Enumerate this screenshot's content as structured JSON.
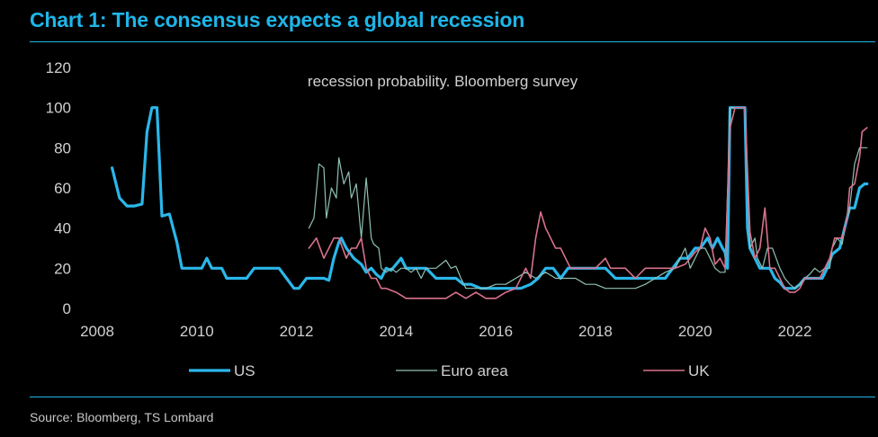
{
  "header": {
    "title": "Chart 1: The consensus expects a global recession"
  },
  "footer": {
    "source": "Source: Bloomberg, TS Lombard"
  },
  "colors": {
    "accent": "#1fb5e8",
    "us": "#2ab7ea",
    "euro": "#8fc1b5",
    "uk": "#d9728c"
  },
  "chart_data": {
    "type": "line",
    "title": "recession probability. Bloomberg survey",
    "xlabel": "",
    "ylabel": "",
    "xlim": [
      2008,
      2023.2
    ],
    "ylim": [
      0,
      120
    ],
    "x_ticks": [
      2008,
      2010,
      2012,
      2014,
      2016,
      2018,
      2020,
      2022
    ],
    "y_ticks": [
      0,
      20,
      40,
      60,
      80,
      100,
      120
    ],
    "grid": false,
    "legend_position": "bottom",
    "series": [
      {
        "name": "US",
        "color": "#2ab7ea",
        "width": 3.2,
        "points": [
          [
            2008.3,
            70
          ],
          [
            2008.45,
            55
          ],
          [
            2008.6,
            51
          ],
          [
            2008.75,
            51
          ],
          [
            2008.9,
            52
          ],
          [
            2009.0,
            88
          ],
          [
            2009.1,
            100
          ],
          [
            2009.2,
            100
          ],
          [
            2009.3,
            46
          ],
          [
            2009.45,
            47
          ],
          [
            2009.6,
            33
          ],
          [
            2009.7,
            20
          ],
          [
            2009.9,
            20
          ],
          [
            2010.1,
            20
          ],
          [
            2010.2,
            25
          ],
          [
            2010.3,
            20
          ],
          [
            2010.5,
            20
          ],
          [
            2010.6,
            15
          ],
          [
            2010.8,
            15
          ],
          [
            2011.0,
            15
          ],
          [
            2011.15,
            20
          ],
          [
            2011.3,
            20
          ],
          [
            2011.5,
            20
          ],
          [
            2011.65,
            20
          ],
          [
            2011.8,
            15
          ],
          [
            2011.95,
            10
          ],
          [
            2012.05,
            10
          ],
          [
            2012.2,
            15
          ],
          [
            2012.4,
            15
          ],
          [
            2012.55,
            15
          ],
          [
            2012.65,
            14
          ],
          [
            2012.75,
            25
          ],
          [
            2012.85,
            33
          ],
          [
            2012.9,
            35
          ],
          [
            2013.0,
            30
          ],
          [
            2013.15,
            25
          ],
          [
            2013.3,
            22
          ],
          [
            2013.4,
            18
          ],
          [
            2013.5,
            20
          ],
          [
            2013.6,
            17
          ],
          [
            2013.7,
            15
          ],
          [
            2013.8,
            20
          ],
          [
            2013.9,
            19
          ],
          [
            2014.0,
            22
          ],
          [
            2014.1,
            25
          ],
          [
            2014.2,
            20
          ],
          [
            2014.4,
            20
          ],
          [
            2014.6,
            20
          ],
          [
            2014.8,
            15
          ],
          [
            2015.0,
            15
          ],
          [
            2015.2,
            15
          ],
          [
            2015.35,
            12
          ],
          [
            2015.5,
            12
          ],
          [
            2015.7,
            10
          ],
          [
            2015.9,
            10
          ],
          [
            2016.1,
            10
          ],
          [
            2016.3,
            10
          ],
          [
            2016.5,
            10
          ],
          [
            2016.7,
            12
          ],
          [
            2016.85,
            15
          ],
          [
            2017.0,
            20
          ],
          [
            2017.15,
            20
          ],
          [
            2017.3,
            15
          ],
          [
            2017.45,
            20
          ],
          [
            2017.6,
            20
          ],
          [
            2017.8,
            20
          ],
          [
            2018.0,
            20
          ],
          [
            2018.2,
            20
          ],
          [
            2018.4,
            15
          ],
          [
            2018.6,
            15
          ],
          [
            2018.8,
            15
          ],
          [
            2019.0,
            15
          ],
          [
            2019.2,
            15
          ],
          [
            2019.4,
            15
          ],
          [
            2019.55,
            20
          ],
          [
            2019.7,
            25
          ],
          [
            2019.85,
            25
          ],
          [
            2020.0,
            30
          ],
          [
            2020.1,
            30
          ],
          [
            2020.25,
            35
          ],
          [
            2020.35,
            30
          ],
          [
            2020.45,
            35
          ],
          [
            2020.55,
            30
          ],
          [
            2020.6,
            28
          ],
          [
            2020.65,
            20
          ],
          [
            2020.7,
            100
          ],
          [
            2020.8,
            100
          ],
          [
            2020.9,
            100
          ],
          [
            2021.0,
            100
          ],
          [
            2021.05,
            40
          ],
          [
            2021.1,
            30
          ],
          [
            2021.2,
            25
          ],
          [
            2021.3,
            20
          ],
          [
            2021.4,
            20
          ],
          [
            2021.5,
            20
          ],
          [
            2021.6,
            15
          ],
          [
            2021.7,
            13
          ],
          [
            2021.8,
            10
          ],
          [
            2021.9,
            10
          ],
          [
            2022.0,
            10
          ],
          [
            2022.1,
            12
          ],
          [
            2022.2,
            15
          ],
          [
            2022.3,
            15
          ],
          [
            2022.45,
            15
          ],
          [
            2022.55,
            15
          ],
          [
            2022.65,
            20
          ],
          [
            2022.75,
            27
          ],
          [
            2022.9,
            30
          ],
          [
            2023.0,
            40
          ],
          [
            2023.1,
            50
          ],
          [
            2023.2,
            50
          ],
          [
            2023.3,
            60
          ],
          [
            2023.4,
            62
          ],
          [
            2023.45,
            62
          ]
        ]
      },
      {
        "name": "Euro area",
        "color": "#8fc1b5",
        "width": 1.2,
        "points": [
          [
            2012.25,
            40
          ],
          [
            2012.35,
            45
          ],
          [
            2012.45,
            72
          ],
          [
            2012.55,
            70
          ],
          [
            2012.6,
            45
          ],
          [
            2012.7,
            60
          ],
          [
            2012.8,
            55
          ],
          [
            2012.85,
            75
          ],
          [
            2012.95,
            62
          ],
          [
            2013.05,
            68
          ],
          [
            2013.1,
            55
          ],
          [
            2013.2,
            62
          ],
          [
            2013.3,
            35
          ],
          [
            2013.4,
            65
          ],
          [
            2013.5,
            35
          ],
          [
            2013.55,
            32
          ],
          [
            2013.65,
            30
          ],
          [
            2013.7,
            20
          ],
          [
            2013.8,
            18
          ],
          [
            2013.9,
            20
          ],
          [
            2014.0,
            18
          ],
          [
            2014.1,
            20
          ],
          [
            2014.2,
            20
          ],
          [
            2014.3,
            18
          ],
          [
            2014.4,
            20
          ],
          [
            2014.5,
            15
          ],
          [
            2014.6,
            20
          ],
          [
            2014.8,
            20
          ],
          [
            2014.9,
            22
          ],
          [
            2015.0,
            24
          ],
          [
            2015.1,
            20
          ],
          [
            2015.2,
            21
          ],
          [
            2015.3,
            15
          ],
          [
            2015.4,
            10
          ],
          [
            2015.6,
            10
          ],
          [
            2015.8,
            10
          ],
          [
            2016.0,
            12
          ],
          [
            2016.2,
            12
          ],
          [
            2016.4,
            15
          ],
          [
            2016.6,
            18
          ],
          [
            2016.8,
            15
          ],
          [
            2017.0,
            18
          ],
          [
            2017.2,
            15
          ],
          [
            2017.4,
            15
          ],
          [
            2017.6,
            15
          ],
          [
            2017.8,
            12
          ],
          [
            2018.0,
            12
          ],
          [
            2018.2,
            10
          ],
          [
            2018.4,
            10
          ],
          [
            2018.6,
            10
          ],
          [
            2018.8,
            10
          ],
          [
            2019.0,
            12
          ],
          [
            2019.2,
            15
          ],
          [
            2019.4,
            18
          ],
          [
            2019.6,
            20
          ],
          [
            2019.7,
            25
          ],
          [
            2019.8,
            30
          ],
          [
            2019.9,
            20
          ],
          [
            2020.0,
            25
          ],
          [
            2020.1,
            30
          ],
          [
            2020.2,
            30
          ],
          [
            2020.3,
            25
          ],
          [
            2020.4,
            20
          ],
          [
            2020.5,
            18
          ],
          [
            2020.6,
            18
          ],
          [
            2020.7,
            100
          ],
          [
            2020.8,
            100
          ],
          [
            2020.9,
            100
          ],
          [
            2021.0,
            100
          ],
          [
            2021.1,
            30
          ],
          [
            2021.2,
            35
          ],
          [
            2021.25,
            25
          ],
          [
            2021.35,
            20
          ],
          [
            2021.45,
            30
          ],
          [
            2021.55,
            30
          ],
          [
            2021.7,
            20
          ],
          [
            2021.8,
            15
          ],
          [
            2021.9,
            12
          ],
          [
            2022.0,
            10
          ],
          [
            2022.1,
            12
          ],
          [
            2022.2,
            15
          ],
          [
            2022.3,
            17
          ],
          [
            2022.4,
            20
          ],
          [
            2022.5,
            18
          ],
          [
            2022.6,
            20
          ],
          [
            2022.7,
            20
          ],
          [
            2022.75,
            30
          ],
          [
            2022.85,
            35
          ],
          [
            2022.95,
            32
          ],
          [
            2023.0,
            40
          ],
          [
            2023.1,
            50
          ],
          [
            2023.2,
            72
          ],
          [
            2023.3,
            80
          ],
          [
            2023.45,
            80
          ]
        ]
      },
      {
        "name": "UK",
        "color": "#d9728c",
        "width": 1.6,
        "points": [
          [
            2012.25,
            30
          ],
          [
            2012.4,
            35
          ],
          [
            2012.55,
            25
          ],
          [
            2012.65,
            30
          ],
          [
            2012.75,
            35
          ],
          [
            2012.85,
            35
          ],
          [
            2013.0,
            25
          ],
          [
            2013.1,
            30
          ],
          [
            2013.2,
            30
          ],
          [
            2013.3,
            35
          ],
          [
            2013.4,
            20
          ],
          [
            2013.5,
            15
          ],
          [
            2013.6,
            15
          ],
          [
            2013.7,
            10
          ],
          [
            2013.8,
            10
          ],
          [
            2014.0,
            8
          ],
          [
            2014.2,
            5
          ],
          [
            2014.4,
            5
          ],
          [
            2014.6,
            5
          ],
          [
            2014.8,
            5
          ],
          [
            2015.0,
            5
          ],
          [
            2015.2,
            8
          ],
          [
            2015.4,
            5
          ],
          [
            2015.6,
            8
          ],
          [
            2015.8,
            5
          ],
          [
            2016.0,
            5
          ],
          [
            2016.2,
            8
          ],
          [
            2016.4,
            10
          ],
          [
            2016.5,
            15
          ],
          [
            2016.6,
            20
          ],
          [
            2016.7,
            15
          ],
          [
            2016.8,
            35
          ],
          [
            2016.9,
            48
          ],
          [
            2017.0,
            40
          ],
          [
            2017.1,
            35
          ],
          [
            2017.2,
            30
          ],
          [
            2017.3,
            30
          ],
          [
            2017.4,
            25
          ],
          [
            2017.5,
            20
          ],
          [
            2017.6,
            20
          ],
          [
            2017.8,
            20
          ],
          [
            2018.0,
            20
          ],
          [
            2018.2,
            25
          ],
          [
            2018.3,
            20
          ],
          [
            2018.4,
            20
          ],
          [
            2018.6,
            20
          ],
          [
            2018.8,
            15
          ],
          [
            2019.0,
            20
          ],
          [
            2019.2,
            20
          ],
          [
            2019.4,
            20
          ],
          [
            2019.6,
            20
          ],
          [
            2019.8,
            22
          ],
          [
            2019.9,
            25
          ],
          [
            2020.0,
            28
          ],
          [
            2020.1,
            30
          ],
          [
            2020.2,
            40
          ],
          [
            2020.3,
            35
          ],
          [
            2020.4,
            22
          ],
          [
            2020.5,
            25
          ],
          [
            2020.6,
            20
          ],
          [
            2020.7,
            90
          ],
          [
            2020.8,
            100
          ],
          [
            2020.9,
            100
          ],
          [
            2021.0,
            100
          ],
          [
            2021.1,
            38
          ],
          [
            2021.2,
            25
          ],
          [
            2021.3,
            30
          ],
          [
            2021.4,
            50
          ],
          [
            2021.5,
            20
          ],
          [
            2021.6,
            20
          ],
          [
            2021.7,
            15
          ],
          [
            2021.8,
            10
          ],
          [
            2021.9,
            8
          ],
          [
            2022.0,
            8
          ],
          [
            2022.1,
            10
          ],
          [
            2022.2,
            15
          ],
          [
            2022.35,
            15
          ],
          [
            2022.5,
            15
          ],
          [
            2022.6,
            20
          ],
          [
            2022.7,
            25
          ],
          [
            2022.8,
            35
          ],
          [
            2022.95,
            35
          ],
          [
            2023.05,
            45
          ],
          [
            2023.1,
            60
          ],
          [
            2023.2,
            62
          ],
          [
            2023.3,
            75
          ],
          [
            2023.35,
            88
          ],
          [
            2023.45,
            90
          ]
        ]
      }
    ]
  }
}
